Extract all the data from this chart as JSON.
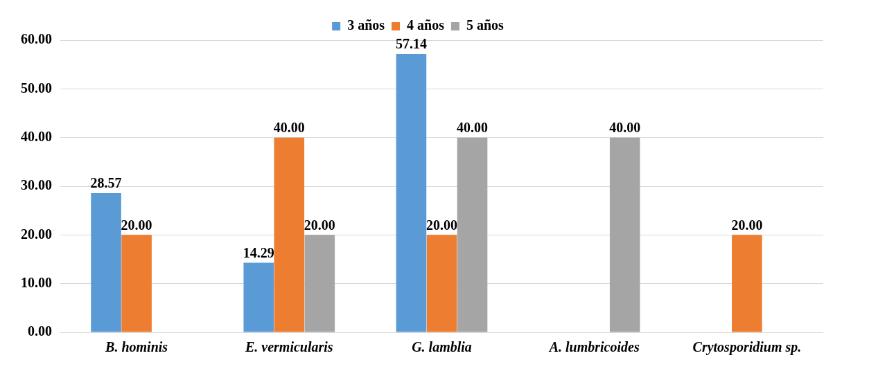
{
  "chart_data": {
    "type": "bar",
    "categories": [
      "B. hominis",
      "E. vermicularis",
      "G. lamblia",
      "A. lumbricoides",
      "Crytosporidium sp."
    ],
    "series": [
      {
        "name": "3 años",
        "color": "#5b9bd5",
        "values": [
          28.57,
          14.29,
          57.14,
          null,
          null
        ],
        "value_labels": [
          "28.57",
          "14.29",
          "57.14",
          null,
          null
        ]
      },
      {
        "name": "4 años",
        "color": "#ed7d31",
        "values": [
          20.0,
          40.0,
          20.0,
          null,
          20.0
        ],
        "value_labels": [
          "20.00",
          "40.00",
          "20.00",
          null,
          "20.00"
        ]
      },
      {
        "name": "5 años",
        "color": "#a5a5a5",
        "values": [
          null,
          20.0,
          40.0,
          40.0,
          null
        ],
        "value_labels": [
          null,
          "20.00",
          "40.00",
          "40.00",
          null
        ]
      }
    ],
    "ylim": [
      0,
      60
    ],
    "yticks": [
      {
        "value": 0,
        "label": "0.00"
      },
      {
        "value": 10,
        "label": "10.00"
      },
      {
        "value": 20,
        "label": "20.00"
      },
      {
        "value": 30,
        "label": "30.00"
      },
      {
        "value": 40,
        "label": "40.00"
      },
      {
        "value": 50,
        "label": "50.00"
      },
      {
        "value": 60,
        "label": "60.00"
      }
    ],
    "grid": "y",
    "legend": "top"
  }
}
